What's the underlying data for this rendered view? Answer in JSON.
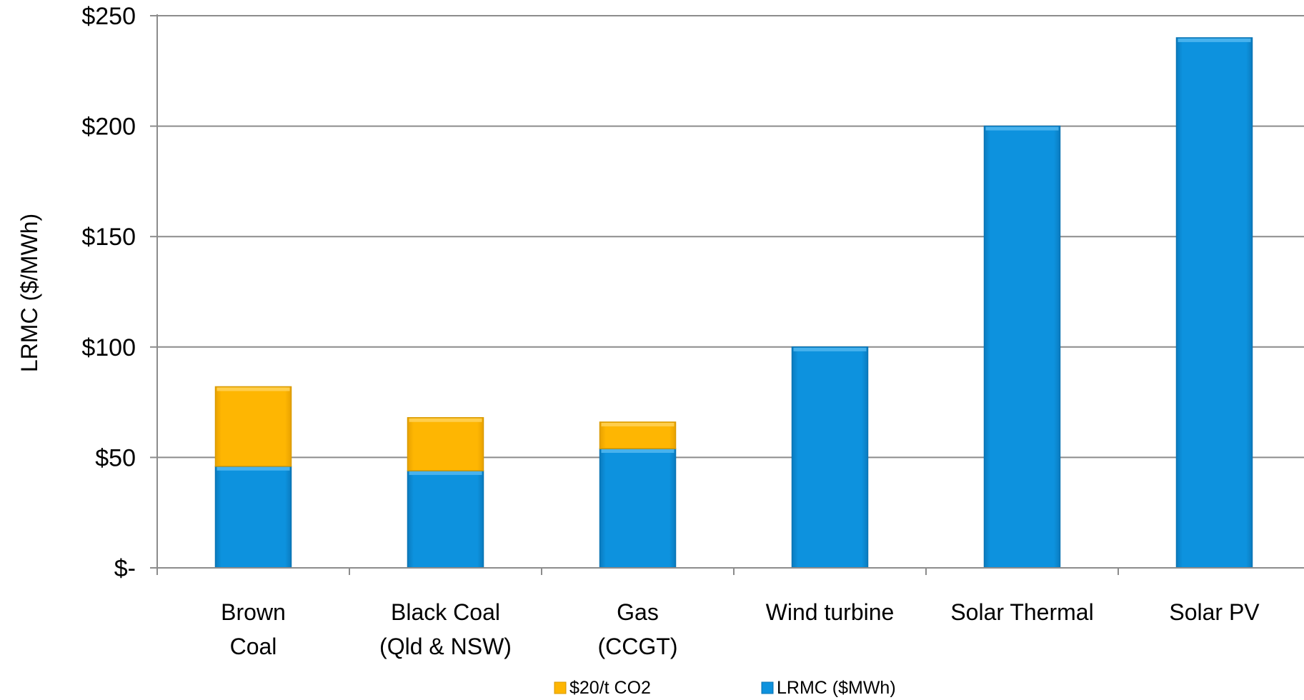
{
  "chart_data": {
    "type": "bar",
    "stacked": true,
    "ylabel": "LRMC ($/MWh)",
    "ylim": [
      0,
      250
    ],
    "yticks": [
      0,
      50,
      100,
      150,
      200,
      250
    ],
    "ytick_labels": [
      "$-",
      "$50",
      "$100",
      "$150",
      "$200",
      "$250"
    ],
    "categories": [
      [
        "Brown",
        "Coal"
      ],
      [
        "Black Coal",
        "(Qld & NSW)"
      ],
      [
        "Gas",
        "(CCGT)"
      ],
      [
        "Wind turbine"
      ],
      [
        "Solar Thermal"
      ],
      [
        "Solar PV"
      ]
    ],
    "series": [
      {
        "name": "LRMC ($MWh)",
        "color": "#0a8ed8",
        "values": [
          46,
          44,
          54,
          100,
          200,
          240
        ]
      },
      {
        "name": "$20/t CO2",
        "color": "#fdb400",
        "values": [
          36,
          24,
          12,
          0,
          0,
          0
        ]
      }
    ],
    "legend_order": [
      "$20/t CO2",
      "LRMC ($MWh)"
    ],
    "legend_position": "bottom",
    "grid": true
  }
}
